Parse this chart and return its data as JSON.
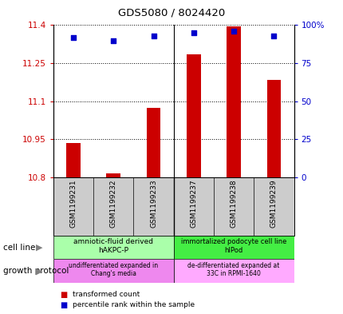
{
  "title": "GDS5080 / 8024420",
  "samples": [
    "GSM1199231",
    "GSM1199232",
    "GSM1199233",
    "GSM1199237",
    "GSM1199238",
    "GSM1199239"
  ],
  "red_values": [
    10.935,
    10.815,
    11.075,
    11.285,
    11.395,
    11.185
  ],
  "blue_values_pct": [
    92,
    90,
    93,
    95,
    96,
    93
  ],
  "ylim_left": [
    10.8,
    11.4
  ],
  "ylim_right": [
    0,
    100
  ],
  "yticks_left": [
    10.8,
    10.95,
    11.1,
    11.25,
    11.4
  ],
  "ytick_labels_left": [
    "10.8",
    "10.95",
    "11.1",
    "11.25",
    "11.4"
  ],
  "yticks_right": [
    0,
    25,
    50,
    75,
    100
  ],
  "ytick_labels_right": [
    "0",
    "25",
    "50",
    "75",
    "100%"
  ],
  "red_color": "#cc0000",
  "blue_color": "#0000cc",
  "bar_width": 0.35,
  "cell_line_group1_label": "amniotic-fluid derived\nhAKPC-P",
  "cell_line_group1_color": "#aaffaa",
  "cell_line_group2_label": "immortalized podocyte cell line\nhIPod",
  "cell_line_group2_color": "#44ee44",
  "growth_group1_label": "undifferentiated expanded in\nChang's media",
  "growth_group1_color": "#ee88ee",
  "growth_group2_label": "de-differentiated expanded at\n33C in RPMI-1640",
  "growth_group2_color": "#ffaaff",
  "cell_line_label": "cell line",
  "growth_protocol_label": "growth protocol",
  "legend_red": "transformed count",
  "legend_blue": "percentile rank within the sample",
  "plot_bg": "#ffffff",
  "label_bg": "#cccccc"
}
